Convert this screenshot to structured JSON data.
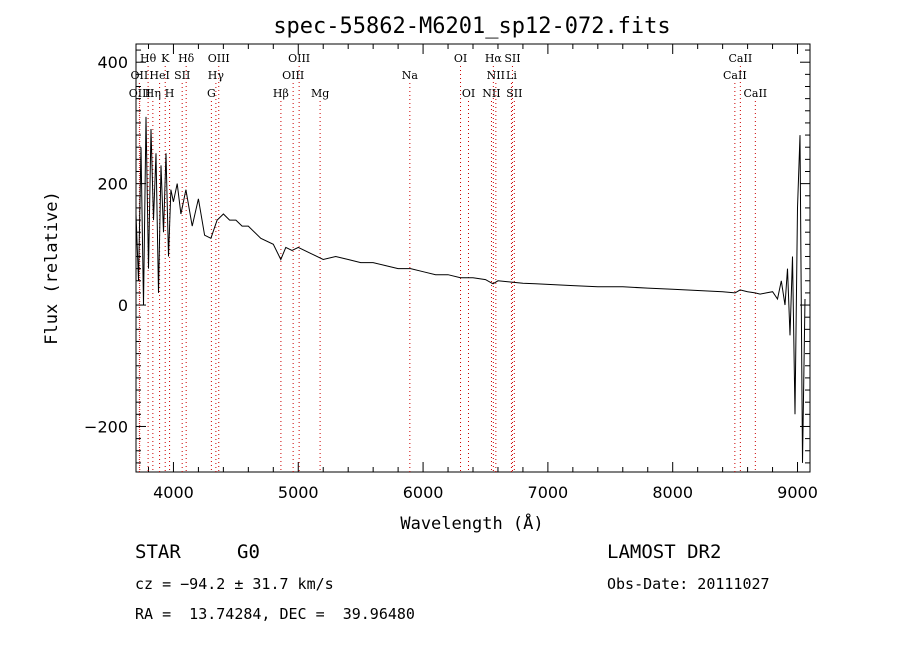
{
  "chart_data": {
    "type": "line",
    "title": "spec-55862-M6201_sp12-072.fits",
    "xlabel": "Wavelength (Å)",
    "ylabel": "Flux (relative)",
    "xlim": [
      3700,
      9100
    ],
    "ylim": [
      -275,
      430
    ],
    "xticks": [
      4000,
      5000,
      6000,
      7000,
      8000,
      9000
    ],
    "yticks": [
      -200,
      0,
      200,
      400
    ],
    "grid": false,
    "line_color": "#000000",
    "marker_color": "#cc0000",
    "series": [
      {
        "x": [
          3700,
          3720,
          3740,
          3760,
          3780,
          3800,
          3820,
          3840,
          3860,
          3880,
          3900,
          3920,
          3940,
          3960,
          3980,
          4000,
          4030,
          4060,
          4100,
          4150,
          4200,
          4250,
          4300,
          4350,
          4400,
          4450,
          4500,
          4550,
          4600,
          4700,
          4800,
          4860,
          4900,
          4950,
          5000,
          5100,
          5200,
          5300,
          5400,
          5500,
          5600,
          5700,
          5800,
          5900,
          6000,
          6100,
          6200,
          6300,
          6400,
          6500,
          6560,
          6600,
          6700,
          6800,
          6900,
          7000,
          7200,
          7400,
          7600,
          7800,
          8000,
          8200,
          8400,
          8500,
          8540,
          8600,
          8660,
          8700,
          8750,
          8800,
          8840,
          8870,
          8900,
          8920,
          8940,
          8960,
          8980,
          9000,
          9020,
          9040,
          9060
        ],
        "y": [
          150,
          40,
          260,
          0,
          310,
          60,
          290,
          140,
          250,
          20,
          230,
          120,
          250,
          80,
          190,
          170,
          200,
          150,
          190,
          130,
          175,
          115,
          110,
          140,
          150,
          140,
          140,
          130,
          130,
          110,
          100,
          75,
          95,
          90,
          95,
          85,
          75,
          80,
          75,
          70,
          70,
          65,
          60,
          60,
          55,
          50,
          50,
          45,
          45,
          42,
          35,
          40,
          38,
          36,
          35,
          34,
          32,
          30,
          30,
          28,
          26,
          24,
          22,
          20,
          25,
          22,
          20,
          18,
          20,
          22,
          10,
          40,
          0,
          60,
          -50,
          80,
          -180,
          160,
          280,
          -260,
          10
        ]
      }
    ],
    "lines": [
      {
        "name": "Hθ",
        "wave": 3797,
        "row": 0
      },
      {
        "name": "OII",
        "wave": 3727,
        "row": 1
      },
      {
        "name": "OIII",
        "wave": 3730,
        "row": 2
      },
      {
        "name": "Hη",
        "wave": 3835,
        "row": 2
      },
      {
        "name": "K",
        "wave": 3934,
        "row": 0
      },
      {
        "name": "HeI",
        "wave": 3889,
        "row": 1
      },
      {
        "name": "SII",
        "wave": 4070,
        "row": 1
      },
      {
        "name": "H",
        "wave": 3969,
        "row": 2
      },
      {
        "name": "Hδ",
        "wave": 4102,
        "row": 0
      },
      {
        "name": "OIII",
        "wave": 4363,
        "row": 0
      },
      {
        "name": "Hγ",
        "wave": 4340,
        "row": 1
      },
      {
        "name": "G",
        "wave": 4304,
        "row": 2
      },
      {
        "name": "OIII",
        "wave": 5007,
        "row": 0
      },
      {
        "name": "OIII",
        "wave": 4959,
        "row": 1
      },
      {
        "name": "Hβ",
        "wave": 4861,
        "row": 2
      },
      {
        "name": "Mg",
        "wave": 5175,
        "row": 2
      },
      {
        "name": "Na",
        "wave": 5894,
        "row": 1
      },
      {
        "name": "OI",
        "wave": 6300,
        "row": 0
      },
      {
        "name": "OI",
        "wave": 6364,
        "row": 2
      },
      {
        "name": "Hα",
        "wave": 6563,
        "row": 0
      },
      {
        "name": "SII",
        "wave": 6716,
        "row": 0
      },
      {
        "name": "NII",
        "wave": 6583,
        "row": 1
      },
      {
        "name": "Li",
        "wave": 6708,
        "row": 1
      },
      {
        "name": "NII",
        "wave": 6548,
        "row": 2
      },
      {
        "name": "SII",
        "wave": 6731,
        "row": 2
      },
      {
        "name": "CaII",
        "wave": 8542,
        "row": 0
      },
      {
        "name": "CaII",
        "wave": 8498,
        "row": 1
      },
      {
        "name": "CaII",
        "wave": 8662,
        "row": 2
      }
    ]
  },
  "info": {
    "class": "STAR",
    "subclass": "G0",
    "survey": "LAMOST DR2",
    "cz": "cz = −94.2 ± 31.7 km/s",
    "obs_date": "Obs-Date: 20111027",
    "coords": "RA =  13.74284, DEC =  39.96480"
  }
}
